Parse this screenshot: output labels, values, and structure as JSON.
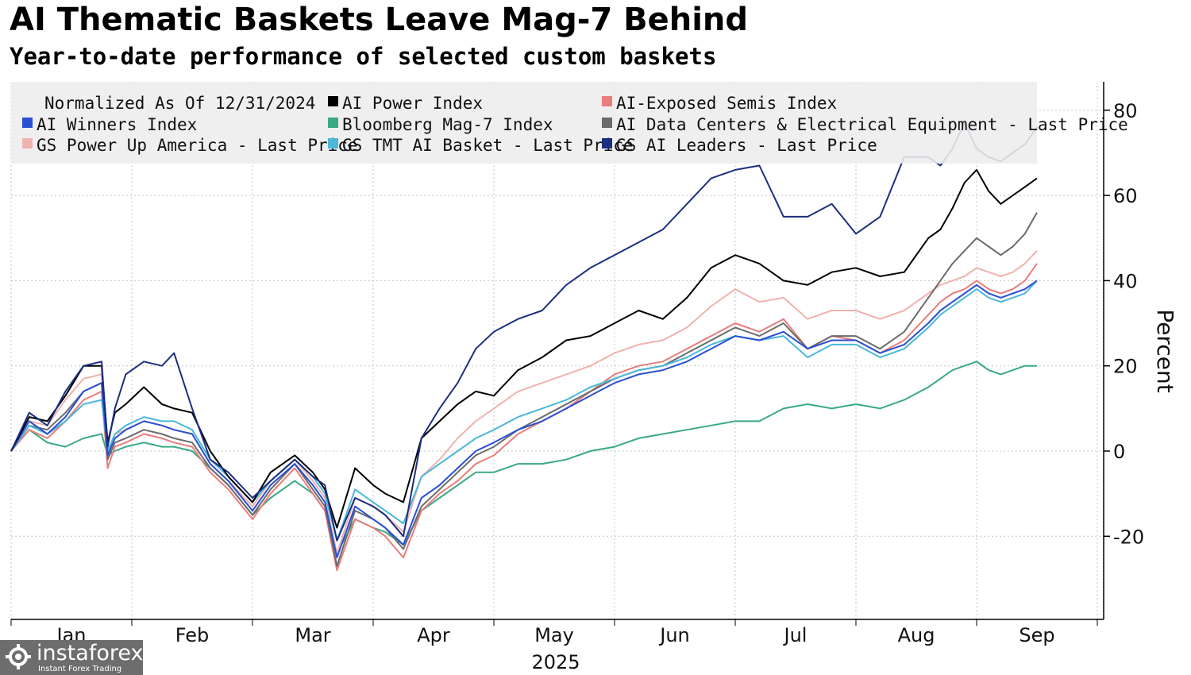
{
  "header": {
    "title": "AI Thematic Baskets Leave Mag-7 Behind",
    "subtitle": "Year-to-date performance of selected custom baskets"
  },
  "watermark": {
    "name": "instaforex",
    "tagline": "Instant Forex Trading"
  },
  "chart_data": {
    "type": "line",
    "title": "AI Thematic Baskets Leave Mag-7 Behind",
    "subtitle": "Year-to-date performance of selected custom baskets",
    "xlabel": "2025",
    "ylabel": "Percent",
    "legend_note": "Normalized As Of 12/31/2024",
    "legend_position": "top-left",
    "x_months": [
      "Jan",
      "Feb",
      "Mar",
      "Apr",
      "May",
      "Jun",
      "Jul",
      "Aug",
      "Sep"
    ],
    "x_year": "2025",
    "x_range": [
      0,
      8.55
    ],
    "ylim": [
      -39,
      87
    ],
    "yticks": [
      -20,
      0,
      20,
      40,
      60,
      80
    ],
    "ytick_labels": [
      "-20",
      "0",
      "20",
      "40",
      "60",
      "80"
    ],
    "grid": true,
    "series": [
      {
        "name": "AI Power Index",
        "color": "#000000",
        "x": [
          0,
          0.15,
          0.3,
          0.45,
          0.6,
          0.75,
          0.8,
          0.86,
          0.95,
          1.1,
          1.25,
          1.35,
          1.5,
          1.65,
          1.8,
          2.0,
          2.15,
          2.35,
          2.5,
          2.6,
          2.7,
          2.85,
          3.0,
          3.1,
          3.25,
          3.4,
          3.55,
          3.7,
          3.85,
          4.0,
          4.2,
          4.4,
          4.6,
          4.8,
          5.0,
          5.2,
          5.4,
          5.6,
          5.8,
          6.0,
          6.2,
          6.4,
          6.6,
          6.8,
          7.0,
          7.2,
          7.4,
          7.6,
          7.7,
          7.8,
          7.9,
          8.0,
          8.1,
          8.2,
          8.3,
          8.4,
          8.5
        ],
        "y": [
          0,
          8,
          7,
          13,
          20,
          20,
          2,
          9,
          11,
          15,
          11,
          10,
          9,
          0,
          -6,
          -12,
          -5,
          -1,
          -5,
          -9,
          -18,
          -4,
          -8,
          -10,
          -12,
          3,
          7,
          11,
          14,
          13,
          19,
          22,
          26,
          27,
          30,
          33,
          31,
          36,
          43,
          46,
          44,
          40,
          39,
          42,
          43,
          41,
          42,
          50,
          52,
          57,
          63,
          66,
          61,
          58,
          60,
          62,
          64
        ]
      },
      {
        "name": "AI-Exposed Semis Index",
        "color": "#e87d7b",
        "x": [
          0,
          0.15,
          0.3,
          0.45,
          0.6,
          0.75,
          0.8,
          0.86,
          0.95,
          1.1,
          1.25,
          1.35,
          1.5,
          1.65,
          1.8,
          2.0,
          2.15,
          2.35,
          2.5,
          2.6,
          2.7,
          2.85,
          3.0,
          3.1,
          3.25,
          3.4,
          3.55,
          3.7,
          3.85,
          4.0,
          4.2,
          4.4,
          4.6,
          4.8,
          5.0,
          5.2,
          5.4,
          5.6,
          5.8,
          6.0,
          6.2,
          6.4,
          6.6,
          6.8,
          7.0,
          7.2,
          7.4,
          7.6,
          7.7,
          7.8,
          7.9,
          8.0,
          8.1,
          8.2,
          8.3,
          8.4,
          8.5
        ],
        "y": [
          0,
          5,
          3,
          7,
          12,
          14,
          -4,
          1,
          2,
          4,
          3,
          2,
          1,
          -5,
          -9,
          -16,
          -10,
          -4,
          -10,
          -14,
          -28,
          -16,
          -18,
          -20,
          -25,
          -14,
          -10,
          -7,
          -3,
          -1,
          4,
          7,
          10,
          14,
          18,
          20,
          21,
          24,
          27,
          30,
          28,
          31,
          24,
          27,
          26,
          23,
          26,
          32,
          35,
          37,
          38,
          40,
          38,
          37,
          38,
          40,
          44
        ]
      },
      {
        "name": "AI Winners Index",
        "color": "#2b4fd4",
        "x": [
          0,
          0.15,
          0.3,
          0.45,
          0.6,
          0.75,
          0.8,
          0.86,
          0.95,
          1.1,
          1.25,
          1.35,
          1.5,
          1.65,
          1.8,
          2.0,
          2.15,
          2.35,
          2.5,
          2.6,
          2.7,
          2.85,
          3.0,
          3.1,
          3.25,
          3.4,
          3.55,
          3.7,
          3.85,
          4.0,
          4.2,
          4.4,
          4.6,
          4.8,
          5.0,
          5.2,
          5.4,
          5.6,
          5.8,
          6.0,
          6.2,
          6.4,
          6.6,
          6.8,
          7.0,
          7.2,
          7.4,
          7.6,
          7.7,
          7.8,
          7.9,
          8.0,
          8.1,
          8.2,
          8.3,
          8.4,
          8.5
        ],
        "y": [
          0,
          7,
          4,
          8,
          14,
          16,
          -1,
          3,
          5,
          7,
          6,
          5,
          4,
          -3,
          -7,
          -14,
          -8,
          -3,
          -8,
          -12,
          -25,
          -13,
          -16,
          -18,
          -22,
          -11,
          -8,
          -4,
          0,
          2,
          5,
          7,
          10,
          13,
          16,
          18,
          19,
          21,
          24,
          27,
          26,
          28,
          24,
          26,
          26,
          23,
          25,
          30,
          33,
          35,
          37,
          39,
          37,
          36,
          37,
          38,
          40
        ]
      },
      {
        "name": "Bloomberg Mag-7 Index",
        "color": "#3aa986",
        "x": [
          0,
          0.15,
          0.3,
          0.45,
          0.6,
          0.75,
          0.8,
          0.86,
          0.95,
          1.1,
          1.25,
          1.35,
          1.5,
          1.65,
          1.8,
          2.0,
          2.15,
          2.35,
          2.5,
          2.6,
          2.7,
          2.85,
          3.0,
          3.1,
          3.25,
          3.4,
          3.55,
          3.7,
          3.85,
          4.0,
          4.2,
          4.4,
          4.6,
          4.8,
          5.0,
          5.2,
          5.4,
          5.6,
          5.8,
          6.0,
          6.2,
          6.4,
          6.6,
          6.8,
          7.0,
          7.2,
          7.4,
          7.6,
          7.7,
          7.8,
          7.9,
          8.0,
          8.1,
          8.2,
          8.3,
          8.4,
          8.5
        ],
        "y": [
          0,
          5,
          2,
          1,
          3,
          4,
          -1,
          0,
          1,
          2,
          1,
          1,
          0,
          -4,
          -8,
          -15,
          -11,
          -7,
          -10,
          -14,
          -24,
          -16,
          -18,
          -19,
          -22,
          -14,
          -11,
          -8,
          -5,
          -5,
          -3,
          -3,
          -2,
          0,
          1,
          3,
          4,
          5,
          6,
          7,
          7,
          10,
          11,
          10,
          11,
          10,
          12,
          15,
          17,
          19,
          20,
          21,
          19,
          18,
          19,
          20,
          20
        ]
      },
      {
        "name": "AI Data Centers & Electrical Equipment - Last Price",
        "color": "#6b6b6b",
        "x": [
          0,
          0.15,
          0.3,
          0.45,
          0.6,
          0.75,
          0.8,
          0.86,
          0.95,
          1.1,
          1.25,
          1.35,
          1.5,
          1.65,
          1.8,
          2.0,
          2.15,
          2.35,
          2.5,
          2.6,
          2.7,
          2.85,
          3.0,
          3.1,
          3.25,
          3.4,
          3.55,
          3.7,
          3.85,
          4.0,
          4.2,
          4.4,
          4.6,
          4.8,
          5.0,
          5.2,
          5.4,
          5.6,
          5.8,
          6.0,
          6.2,
          6.4,
          6.6,
          6.8,
          7.0,
          7.2,
          7.4,
          7.6,
          7.7,
          7.8,
          7.9,
          8.0,
          8.1,
          8.2,
          8.3,
          8.4,
          8.5
        ],
        "y": [
          0,
          6,
          5,
          9,
          14,
          16,
          -2,
          2,
          3,
          5,
          4,
          3,
          2,
          -4,
          -8,
          -15,
          -9,
          -3,
          -9,
          -13,
          -27,
          -14,
          -16,
          -18,
          -23,
          -13,
          -9,
          -5,
          -1,
          1,
          5,
          8,
          11,
          14,
          17,
          19,
          20,
          23,
          26,
          29,
          27,
          30,
          24,
          27,
          27,
          24,
          28,
          36,
          40,
          44,
          47,
          50,
          48,
          46,
          48,
          51,
          56
        ]
      },
      {
        "name": "GS Power Up America - Last Price",
        "color": "#f0b2ae",
        "x": [
          0,
          0.15,
          0.3,
          0.45,
          0.6,
          0.75,
          0.8,
          0.86,
          0.95,
          1.1,
          1.25,
          1.35,
          1.5,
          1.65,
          1.8,
          2.0,
          2.15,
          2.35,
          2.5,
          2.6,
          2.7,
          2.85,
          3.0,
          3.1,
          3.25,
          3.4,
          3.55,
          3.7,
          3.85,
          4.0,
          4.2,
          4.4,
          4.6,
          4.8,
          5.0,
          5.2,
          5.4,
          5.6,
          5.8,
          6.0,
          6.2,
          6.4,
          6.6,
          6.8,
          7.0,
          7.2,
          7.4,
          7.6,
          7.7,
          7.8,
          7.9,
          8.0,
          8.1,
          8.2,
          8.3,
          8.4,
          8.5
        ],
        "y": [
          0,
          7,
          6,
          12,
          17,
          18,
          -1,
          4,
          5,
          7,
          6,
          5,
          4,
          -3,
          -7,
          -13,
          -7,
          -2,
          -7,
          -11,
          -24,
          -11,
          -13,
          -15,
          -19,
          -6,
          -2,
          3,
          7,
          10,
          14,
          16,
          18,
          20,
          23,
          25,
          26,
          29,
          34,
          38,
          35,
          36,
          31,
          33,
          33,
          31,
          33,
          37,
          39,
          40,
          41,
          43,
          42,
          41,
          42,
          44,
          47
        ]
      },
      {
        "name": "GS TMT AI Basket - Last Price",
        "color": "#4ab8d8",
        "x": [
          0,
          0.15,
          0.3,
          0.45,
          0.6,
          0.75,
          0.8,
          0.86,
          0.95,
          1.1,
          1.25,
          1.35,
          1.5,
          1.65,
          1.8,
          2.0,
          2.15,
          2.35,
          2.5,
          2.6,
          2.7,
          2.85,
          3.0,
          3.1,
          3.25,
          3.4,
          3.55,
          3.7,
          3.85,
          4.0,
          4.2,
          4.4,
          4.6,
          4.8,
          5.0,
          5.2,
          5.4,
          5.6,
          5.8,
          6.0,
          6.2,
          6.4,
          6.6,
          6.8,
          7.0,
          7.2,
          7.4,
          7.6,
          7.7,
          7.8,
          7.9,
          8.0,
          8.1,
          8.2,
          8.3,
          8.4,
          8.5
        ],
        "y": [
          0,
          6,
          4,
          7,
          11,
          12,
          0,
          4,
          6,
          8,
          7,
          7,
          5,
          -2,
          -6,
          -12,
          -7,
          -2,
          -6,
          -10,
          -21,
          -9,
          -12,
          -14,
          -17,
          -6,
          -3,
          0,
          3,
          5,
          8,
          10,
          12,
          15,
          17,
          19,
          20,
          22,
          25,
          27,
          26,
          27,
          22,
          25,
          25,
          22,
          24,
          29,
          32,
          34,
          36,
          38,
          36,
          35,
          36,
          37,
          40
        ]
      },
      {
        "name": "GS AI Leaders - Last Price",
        "color": "#1c2e80",
        "x": [
          0,
          0.15,
          0.3,
          0.45,
          0.6,
          0.75,
          0.8,
          0.86,
          0.95,
          1.1,
          1.25,
          1.35,
          1.5,
          1.65,
          1.8,
          2.0,
          2.15,
          2.35,
          2.5,
          2.6,
          2.7,
          2.85,
          3.0,
          3.1,
          3.25,
          3.4,
          3.55,
          3.7,
          3.85,
          4.0,
          4.2,
          4.4,
          4.6,
          4.8,
          5.0,
          5.2,
          5.4,
          5.6,
          5.8,
          6.0,
          6.2,
          6.4,
          6.6,
          6.8,
          7.0,
          7.2,
          7.4,
          7.6,
          7.7,
          7.8,
          7.9,
          8.0,
          8.1,
          8.2,
          8.3,
          8.4,
          8.5
        ],
        "y": [
          0,
          9,
          6,
          14,
          20,
          21,
          1,
          10,
          18,
          21,
          20,
          23,
          10,
          -2,
          -5,
          -11,
          -7,
          -2,
          -6,
          -8,
          -21,
          -11,
          -13,
          -15,
          -20,
          3,
          10,
          16,
          24,
          28,
          31,
          33,
          39,
          43,
          46,
          49,
          52,
          58,
          64,
          66,
          67,
          55,
          55,
          58,
          51,
          55,
          69,
          69,
          67,
          71,
          77,
          71,
          69,
          68,
          70,
          72,
          76
        ]
      }
    ]
  }
}
